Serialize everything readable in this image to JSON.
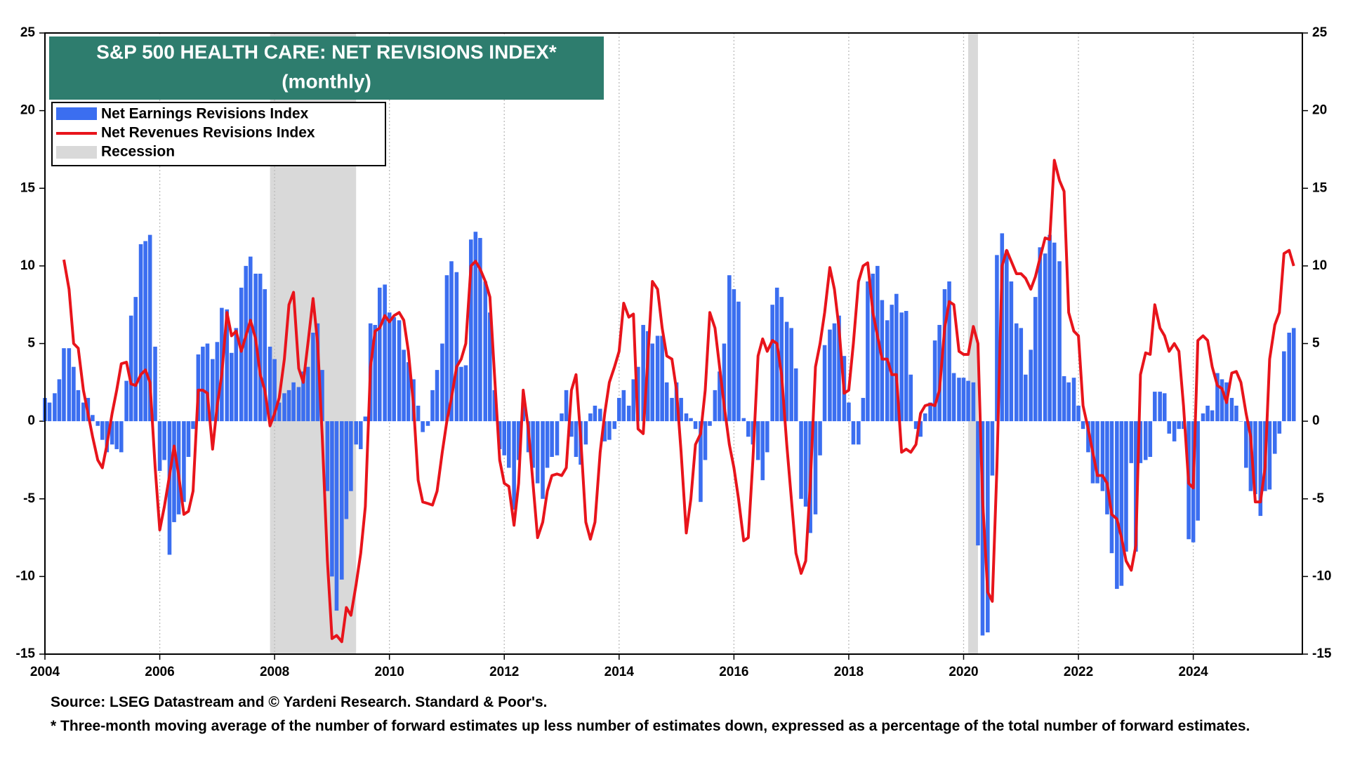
{
  "chart_data": {
    "type": "bar-line",
    "title": "S&P 500 HEALTH CARE: NET REVISIONS INDEX*",
    "subtitle": "(monthly)",
    "source": "Source: LSEG Datastream and © Yardeni Research. Standard & Poor's.",
    "note": "* Three-month moving average of the number of forward estimates up less number of estimates down, expressed as a percentage of the total number of forward estimates.",
    "xlim": [
      2004,
      2025.9
    ],
    "xticks": [
      2004,
      2006,
      2008,
      2010,
      2012,
      2014,
      2016,
      2018,
      2020,
      2022,
      2024
    ],
    "ylim": [
      -15,
      25
    ],
    "yticks": [
      -15,
      -10,
      -5,
      0,
      5,
      10,
      15,
      20,
      25
    ],
    "grid": true,
    "legend": "upper left",
    "recession": {
      "name": "Recession",
      "color": "#d9d9d9",
      "spans": [
        [
          2007.92,
          2009.42
        ],
        [
          2020.08,
          2020.25
        ]
      ]
    },
    "x": [
      2004,
      2004.08,
      2004.17,
      2004.25,
      2004.33,
      2004.42,
      2004.5,
      2004.58,
      2004.67,
      2004.75,
      2004.83,
      2004.92,
      2005,
      2005.08,
      2005.17,
      2005.25,
      2005.33,
      2005.42,
      2005.5,
      2005.58,
      2005.67,
      2005.75,
      2005.83,
      2005.92,
      2006,
      2006.08,
      2006.17,
      2006.25,
      2006.33,
      2006.42,
      2006.5,
      2006.58,
      2006.67,
      2006.75,
      2006.83,
      2006.92,
      2007,
      2007.08,
      2007.17,
      2007.25,
      2007.33,
      2007.42,
      2007.5,
      2007.58,
      2007.67,
      2007.75,
      2007.83,
      2007.92,
      2008,
      2008.08,
      2008.17,
      2008.25,
      2008.33,
      2008.42,
      2008.5,
      2008.58,
      2008.67,
      2008.75,
      2008.83,
      2008.92,
      2009,
      2009.08,
      2009.17,
      2009.25,
      2009.33,
      2009.42,
      2009.5,
      2009.58,
      2009.67,
      2009.75,
      2009.83,
      2009.92,
      2010,
      2010.08,
      2010.17,
      2010.25,
      2010.33,
      2010.42,
      2010.5,
      2010.58,
      2010.67,
      2010.75,
      2010.83,
      2010.92,
      2011,
      2011.08,
      2011.17,
      2011.25,
      2011.33,
      2011.42,
      2011.5,
      2011.58,
      2011.67,
      2011.75,
      2011.83,
      2011.92,
      2012,
      2012.08,
      2012.17,
      2012.25,
      2012.33,
      2012.42,
      2012.5,
      2012.58,
      2012.67,
      2012.75,
      2012.83,
      2012.92,
      2013,
      2013.08,
      2013.17,
      2013.25,
      2013.33,
      2013.42,
      2013.5,
      2013.58,
      2013.67,
      2013.75,
      2013.83,
      2013.92,
      2014,
      2014.08,
      2014.17,
      2014.25,
      2014.33,
      2014.42,
      2014.5,
      2014.58,
      2014.67,
      2014.75,
      2014.83,
      2014.92,
      2015,
      2015.08,
      2015.17,
      2015.25,
      2015.33,
      2015.42,
      2015.5,
      2015.58,
      2015.67,
      2015.75,
      2015.83,
      2015.92,
      2016,
      2016.08,
      2016.17,
      2016.25,
      2016.33,
      2016.42,
      2016.5,
      2016.58,
      2016.67,
      2016.75,
      2016.83,
      2016.92,
      2017,
      2017.08,
      2017.17,
      2017.25,
      2017.33,
      2017.42,
      2017.5,
      2017.58,
      2017.67,
      2017.75,
      2017.83,
      2017.92,
      2018,
      2018.08,
      2018.17,
      2018.25,
      2018.33,
      2018.42,
      2018.5,
      2018.58,
      2018.67,
      2018.75,
      2018.83,
      2018.92,
      2019,
      2019.08,
      2019.17,
      2019.25,
      2019.33,
      2019.42,
      2019.5,
      2019.58,
      2019.67,
      2019.75,
      2019.83,
      2019.92,
      2020,
      2020.08,
      2020.17,
      2020.25,
      2020.33,
      2020.42,
      2020.5,
      2020.58,
      2020.67,
      2020.75,
      2020.83,
      2020.92,
      2021,
      2021.08,
      2021.17,
      2021.25,
      2021.33,
      2021.42,
      2021.5,
      2021.58,
      2021.67,
      2021.75,
      2021.83,
      2021.92,
      2022,
      2022.08,
      2022.17,
      2022.25,
      2022.33,
      2022.42,
      2022.5,
      2022.58,
      2022.67,
      2022.75,
      2022.83,
      2022.92,
      2023,
      2023.08,
      2023.17,
      2023.25,
      2023.33,
      2023.42,
      2023.5,
      2023.58,
      2023.67,
      2023.75,
      2023.83,
      2023.92,
      2024,
      2024.08,
      2024.17,
      2024.25,
      2024.33,
      2024.42,
      2024.5,
      2024.58,
      2024.67,
      2024.75,
      2024.83,
      2024.92,
      2025,
      2025.08,
      2025.17,
      2025.25,
      2025.33,
      2025.42,
      2025.5,
      2025.58,
      2025.67,
      2025.75
    ],
    "series": [
      {
        "name": "Net Earnings Revisions Index",
        "kind": "bar",
        "color": "#3b6ef0",
        "values": [
          1.5,
          1.2,
          1.8,
          2.7,
          4.7,
          4.7,
          3.5,
          2.0,
          1.2,
          1.5,
          0.4,
          -0.3,
          -1.2,
          -2.0,
          -1.5,
          -1.8,
          -2.0,
          2.6,
          6.8,
          8.0,
          11.4,
          11.6,
          12.0,
          4.8,
          -3.2,
          -2.5,
          -8.6,
          -6.5,
          -6.0,
          -5.2,
          -2.3,
          -0.5,
          4.3,
          4.8,
          5.0,
          4.0,
          5.1,
          7.3,
          7.2,
          4.4,
          6.0,
          8.6,
          10.0,
          10.6,
          9.5,
          9.5,
          8.5,
          4.8,
          4.0,
          1.2,
          1.8,
          2.0,
          2.5,
          2.2,
          3.2,
          3.5,
          5.7,
          6.3,
          3.3,
          -4.5,
          -10.0,
          -12.2,
          -10.2,
          -6.3,
          -4.5,
          -1.5,
          -1.8,
          0.3,
          6.3,
          6.2,
          8.6,
          8.8,
          7.0,
          6.7,
          6.5,
          4.6,
          3.8,
          2.7,
          1.0,
          -0.7,
          -0.3,
          2.0,
          3.3,
          5.0,
          9.4,
          10.3,
          9.6,
          3.5,
          3.6,
          11.7,
          12.2,
          11.8,
          9.0,
          7.0,
          2.0,
          -1.8,
          -2.2,
          -3.0,
          -5.7,
          -2.5,
          1.2,
          -2.0,
          -3.0,
          -4.0,
          -5.0,
          -3.0,
          -2.3,
          -2.2,
          0.5,
          2.0,
          -1.0,
          -2.3,
          -2.8,
          -1.5,
          0.5,
          1.0,
          0.8,
          -1.3,
          -1.2,
          -0.5,
          1.5,
          2.0,
          1.0,
          2.7,
          3.5,
          6.2,
          5.8,
          5.0,
          5.5,
          5.5,
          2.5,
          1.5,
          2.5,
          1.5,
          0.5,
          0.2,
          -0.5,
          -5.2,
          -2.5,
          -0.3,
          2.0,
          3.2,
          5.0,
          9.4,
          8.5,
          7.7,
          0.2,
          -1.0,
          -1.5,
          -2.5,
          -3.8,
          -2.0,
          7.5,
          8.6,
          8.0,
          6.4,
          6.0,
          3.4,
          -5.0,
          -5.5,
          -7.2,
          -6.0,
          -2.2,
          4.9,
          5.9,
          6.3,
          6.8,
          4.2,
          1.2,
          -1.5,
          -1.5,
          1.5,
          9.0,
          9.5,
          10.0,
          7.8,
          6.5,
          7.5,
          8.2,
          7.0,
          7.1,
          3.0,
          -0.5,
          -1.0,
          0.5,
          1.2,
          5.2,
          6.2,
          8.5,
          9.0,
          3.1,
          2.8,
          2.8,
          2.6,
          2.5,
          -8.0,
          -13.8,
          -13.6,
          -3.5,
          10.7,
          12.1,
          11.0,
          9.0,
          6.3,
          6.0,
          3.0,
          4.6,
          8.0,
          11.2,
          10.8,
          12.0,
          11.5,
          10.3,
          2.9,
          2.5,
          2.8,
          1.0,
          -0.5,
          -2.0,
          -4.0,
          -4.0,
          -4.5,
          -6.0,
          -8.5,
          -10.8,
          -10.6,
          -8.4,
          -2.7,
          -8.4,
          -2.7,
          -2.5,
          -2.3,
          1.9,
          1.9,
          1.8,
          -0.8,
          -1.3,
          -0.5,
          -0.5,
          -7.6,
          -7.8,
          -6.4,
          0.5,
          1.0,
          0.7,
          3.1,
          2.7,
          2.5,
          1.5,
          1.0,
          0.0,
          -3.0,
          -4.5,
          -4.7,
          -6.1,
          -4.5,
          -4.4,
          -2.1,
          -0.8,
          4.5,
          5.7,
          6.0
        ]
      },
      {
        "name": "Net Revenues Revisions Index",
        "kind": "line",
        "color": "#e8141b",
        "values": [
          null,
          null,
          null,
          null,
          10.4,
          8.5,
          5.0,
          4.7,
          2.0,
          0.5,
          -1.0,
          -2.5,
          -3.0,
          -1.5,
          0.5,
          2.0,
          3.7,
          3.8,
          2.4,
          2.3,
          3.0,
          3.3,
          2.5,
          -3.0,
          -7.0,
          -5.5,
          -3.5,
          -1.6,
          -3.5,
          -6.0,
          -5.8,
          -4.5,
          2.0,
          2.0,
          1.8,
          -1.8,
          1.0,
          3.0,
          7.0,
          5.5,
          5.8,
          4.5,
          5.5,
          6.5,
          5.3,
          3.0,
          2.0,
          -0.3,
          0.5,
          1.5,
          4.0,
          7.5,
          8.3,
          3.4,
          2.5,
          5.0,
          7.9,
          5.0,
          -1.0,
          -9.0,
          -14.0,
          -13.8,
          -14.2,
          -12.0,
          -12.5,
          -10.5,
          -8.5,
          -5.5,
          3.5,
          5.8,
          6.0,
          6.8,
          6.4,
          6.8,
          7.0,
          6.5,
          4.5,
          1.0,
          -3.8,
          -5.2,
          -5.3,
          -5.4,
          -4.5,
          -2.0,
          0.0,
          1.5,
          3.5,
          4.0,
          5.0,
          10.0,
          10.3,
          9.8,
          9.0,
          8.0,
          3.0,
          -2.5,
          -4.0,
          -4.2,
          -6.7,
          -4.0,
          2.0,
          -0.5,
          -4.0,
          -7.5,
          -6.5,
          -4.5,
          -3.5,
          -3.4,
          -3.5,
          -3.0,
          2.0,
          3.0,
          -1.0,
          -6.5,
          -7.6,
          -6.5,
          -2.0,
          0.5,
          2.5,
          3.5,
          4.5,
          7.6,
          6.7,
          6.9,
          -0.5,
          -0.8,
          4.0,
          9.0,
          8.5,
          6.0,
          4.2,
          4.0,
          2.0,
          -2.0,
          -7.2,
          -5.0,
          -1.5,
          -0.8,
          2.0,
          7.0,
          6.0,
          3.5,
          1.0,
          -1.5,
          -3.0,
          -5.0,
          -7.7,
          -7.5,
          -2.5,
          4.2,
          5.3,
          4.5,
          5.2,
          5.0,
          3.0,
          -1.5,
          -5.0,
          -8.5,
          -9.8,
          -9.0,
          -4.0,
          3.5,
          5.0,
          7.0,
          9.9,
          8.5,
          6.0,
          1.8,
          2.0,
          5.0,
          9.0,
          10.0,
          10.2,
          7.0,
          5.5,
          4.0,
          4.0,
          3.0,
          3.0,
          -2.0,
          -1.8,
          -2.0,
          -1.5,
          0.5,
          1.0,
          1.1,
          1.0,
          2.0,
          6.0,
          7.7,
          7.5,
          4.5,
          4.3,
          4.3,
          6.1,
          5.0,
          -5.0,
          -11.0,
          -11.6,
          -3.0,
          10.0,
          11.0,
          10.3,
          9.5,
          9.5,
          9.2,
          8.5,
          9.3,
          10.5,
          11.8,
          11.7,
          16.8,
          15.5,
          14.8,
          7.0,
          5.8,
          5.5,
          1.0,
          -0.5,
          -2.0,
          -3.5,
          -3.5,
          -4.0,
          -6.0,
          -6.3,
          -7.5,
          -9.0,
          -9.6,
          -8.0,
          3.0,
          4.4,
          4.3,
          7.5,
          6.0,
          5.5,
          4.5,
          5.0,
          4.5,
          1.0,
          -4.0,
          -4.3,
          5.2,
          5.5,
          5.2,
          3.5,
          2.3,
          2.1,
          1.2,
          3.1,
          3.2,
          2.5,
          0.5,
          -1.0,
          -5.2,
          -5.2,
          -3.0,
          4.0,
          6.2,
          7.0,
          10.8,
          11.0,
          10.0
        ]
      }
    ]
  }
}
